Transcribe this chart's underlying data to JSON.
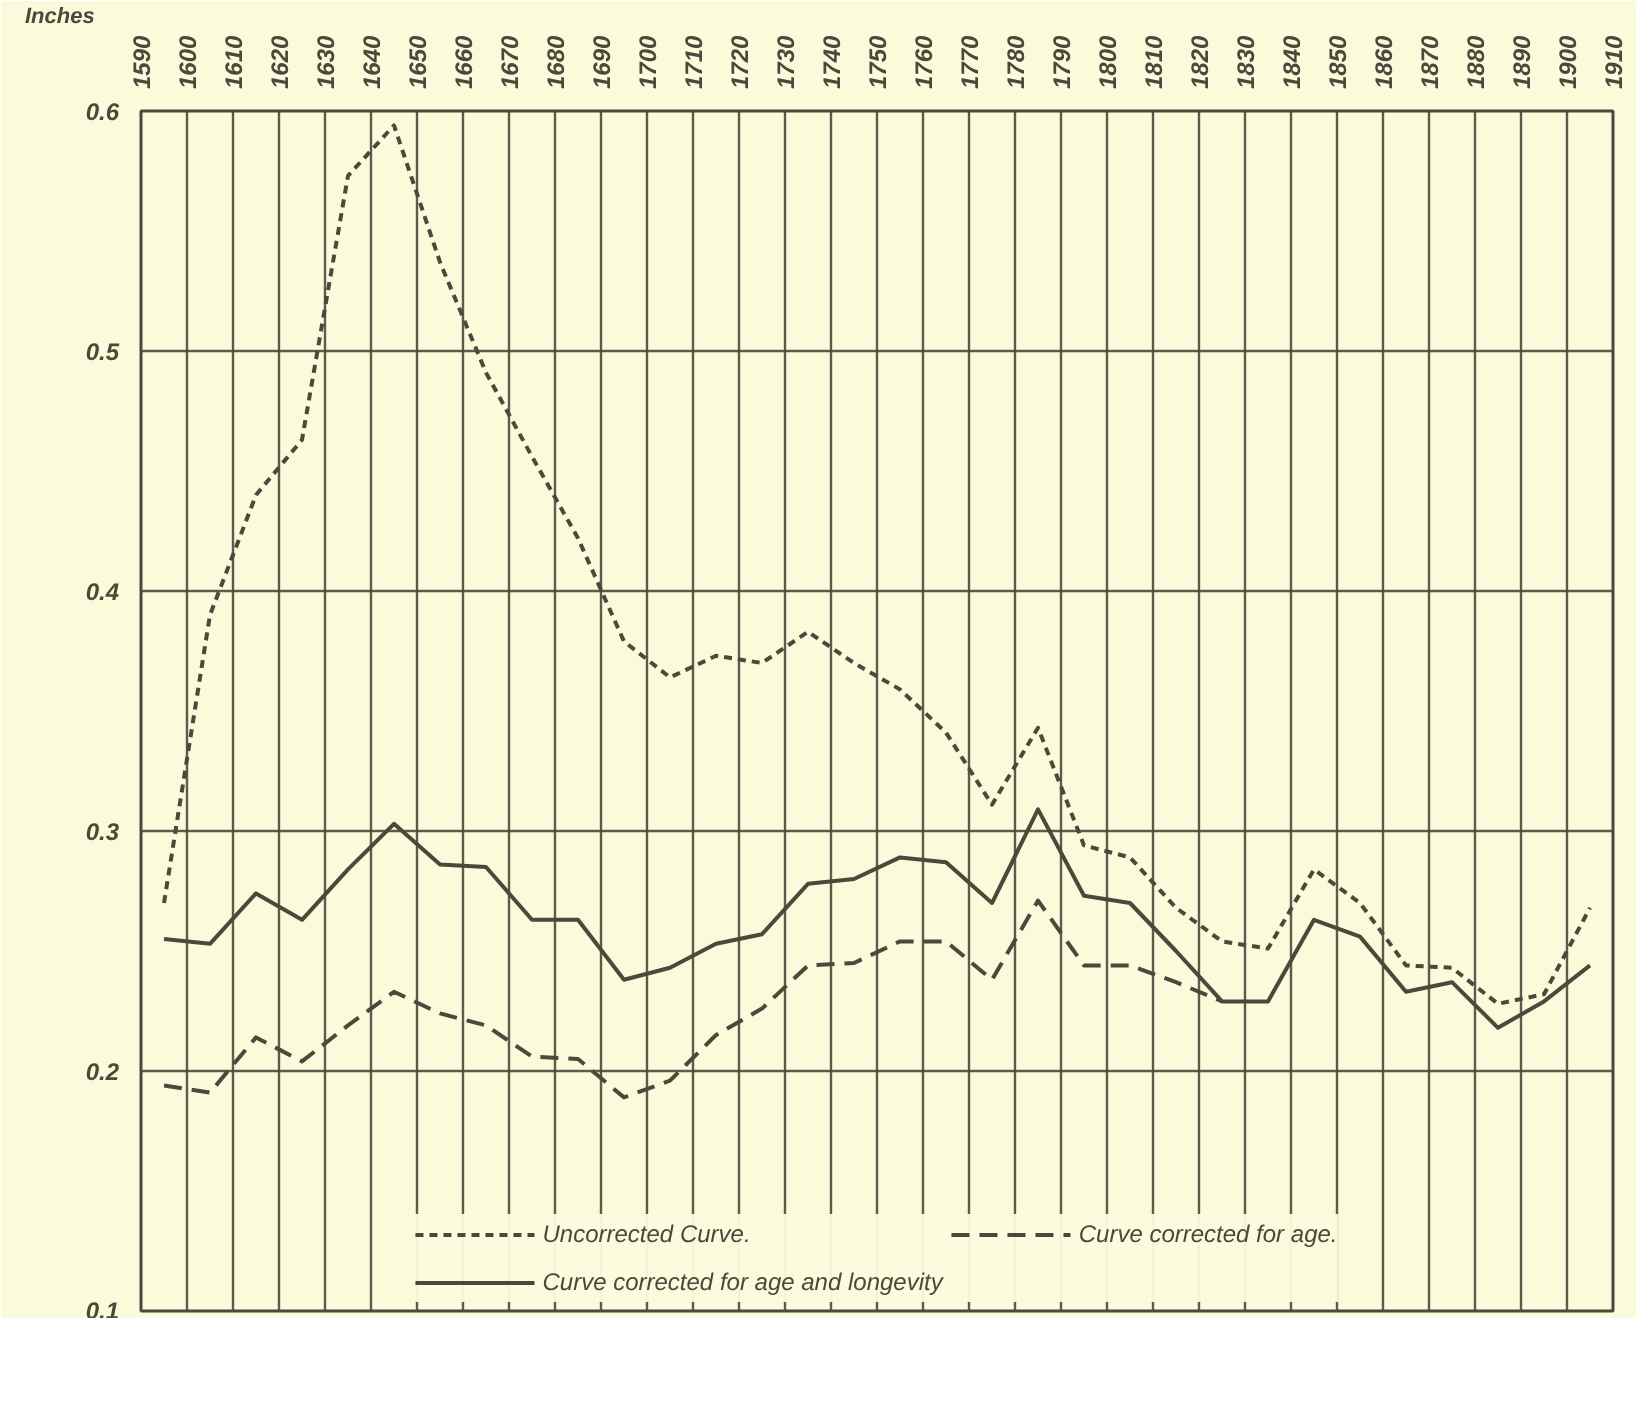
{
  "chart_data": {
    "type": "line",
    "ylabel": "Inches",
    "x": [
      1595,
      1605,
      1615,
      1625,
      1635,
      1645,
      1655,
      1665,
      1675,
      1685,
      1695,
      1705,
      1715,
      1725,
      1735,
      1745,
      1755,
      1765,
      1775,
      1785,
      1795,
      1805,
      1815,
      1825,
      1835,
      1845,
      1855,
      1865,
      1875,
      1885,
      1895,
      1905
    ],
    "series": [
      {
        "name": "Uncorrected Curve.",
        "color": "#4a4a3c",
        "line_style": "dotted",
        "values": [
          0.27,
          0.39,
          0.44,
          0.463,
          0.573,
          0.594,
          0.537,
          0.491,
          0.456,
          0.422,
          0.379,
          0.364,
          0.373,
          0.37,
          0.383,
          0.37,
          0.359,
          0.341,
          0.311,
          0.343,
          0.294,
          0.289,
          0.268,
          0.254,
          0.251,
          0.284,
          0.27,
          0.244,
          0.243,
          0.228,
          0.232,
          0.268
        ]
      },
      {
        "name": "Curve corrected for age.",
        "color": "#4a4a3c",
        "line_style": "dashed",
        "values": [
          0.194,
          0.191,
          0.214,
          0.204,
          0.219,
          0.233,
          0.224,
          0.219,
          0.206,
          0.205,
          0.189,
          0.196,
          0.215,
          0.226,
          0.244,
          0.245,
          0.254,
          0.254,
          0.238,
          0.271,
          0.244,
          0.244,
          0.237,
          0.229,
          null,
          null,
          null,
          null,
          null,
          null,
          null,
          null
        ]
      },
      {
        "name": "Curve corrected for age and longevity",
        "color": "#4a4a3c",
        "line_style": "solid",
        "values": [
          0.255,
          0.253,
          0.274,
          0.263,
          0.284,
          0.303,
          0.286,
          0.285,
          0.263,
          0.263,
          0.238,
          0.243,
          0.253,
          0.257,
          0.278,
          0.28,
          0.289,
          0.287,
          0.27,
          0.309,
          0.273,
          0.27,
          0.25,
          0.229,
          0.229,
          0.263,
          0.256,
          0.233,
          0.237,
          0.218,
          0.229,
          0.244
        ]
      }
    ],
    "xlim": [
      1590,
      1910
    ],
    "xticks": [
      1590,
      1600,
      1610,
      1620,
      1630,
      1640,
      1650,
      1660,
      1670,
      1680,
      1690,
      1700,
      1710,
      1720,
      1730,
      1740,
      1750,
      1760,
      1770,
      1780,
      1790,
      1800,
      1810,
      1820,
      1830,
      1840,
      1850,
      1860,
      1870,
      1880,
      1890,
      1900,
      1910
    ],
    "ylim": [
      0.1,
      0.6
    ],
    "yticks": [
      0.1,
      0.2,
      0.3,
      0.4,
      0.5,
      0.6
    ],
    "grid": true,
    "legend": "bottom"
  }
}
